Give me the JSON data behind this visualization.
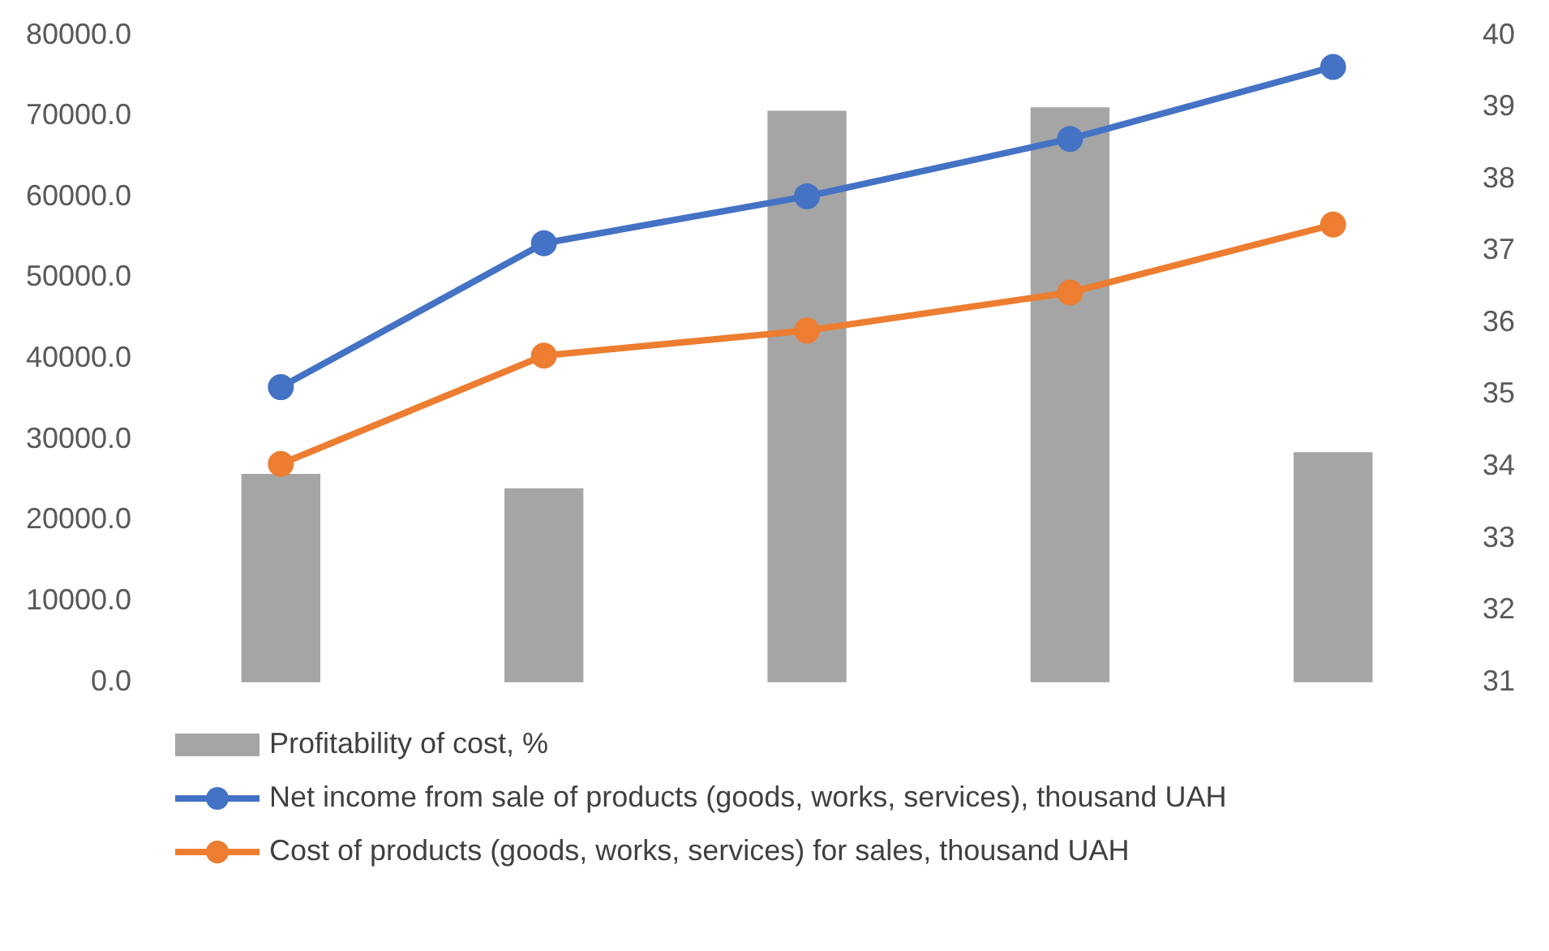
{
  "chart_data": {
    "type": "bar",
    "categories": [
      null,
      null,
      null,
      null,
      null
    ],
    "series": [
      {
        "name": "Profitability of cost, %",
        "axis": "y2",
        "color": "#a5a5a5",
        "values": [
          33.9,
          33.7,
          38.95,
          39.0,
          34.2
        ]
      },
      {
        "name": "Net income from sale of products (goods, works, services), thousand UAH",
        "type": "line",
        "color": "#4472c4",
        "values": [
          36500,
          54300,
          60100,
          67200,
          76100
        ]
      },
      {
        "name": "Cost of products (goods, works, services) for sales, thousand UAH",
        "type": "line",
        "color": "#ed7d31",
        "values": [
          27000,
          40400,
          43500,
          48200,
          56600
        ]
      }
    ],
    "ylim": [
      0,
      80000
    ],
    "yticks": [
      {
        "value": 0,
        "label": "0.0"
      },
      {
        "value": 10000,
        "label": "10000.0"
      },
      {
        "value": 20000,
        "label": "20000.0"
      },
      {
        "value": 30000,
        "label": "30000.0"
      },
      {
        "value": 40000,
        "label": "40000.0"
      },
      {
        "value": 50000,
        "label": "50000.0"
      },
      {
        "value": 60000,
        "label": "60000.0"
      },
      {
        "value": 70000,
        "label": "70000.0"
      },
      {
        "value": 80000,
        "label": "80000.0"
      }
    ],
    "y2lim": [
      31,
      40
    ],
    "y2ticks": [
      31,
      32,
      33,
      34,
      35,
      36,
      37,
      38,
      39,
      40
    ],
    "legend": "bottom",
    "marker": "circle"
  }
}
